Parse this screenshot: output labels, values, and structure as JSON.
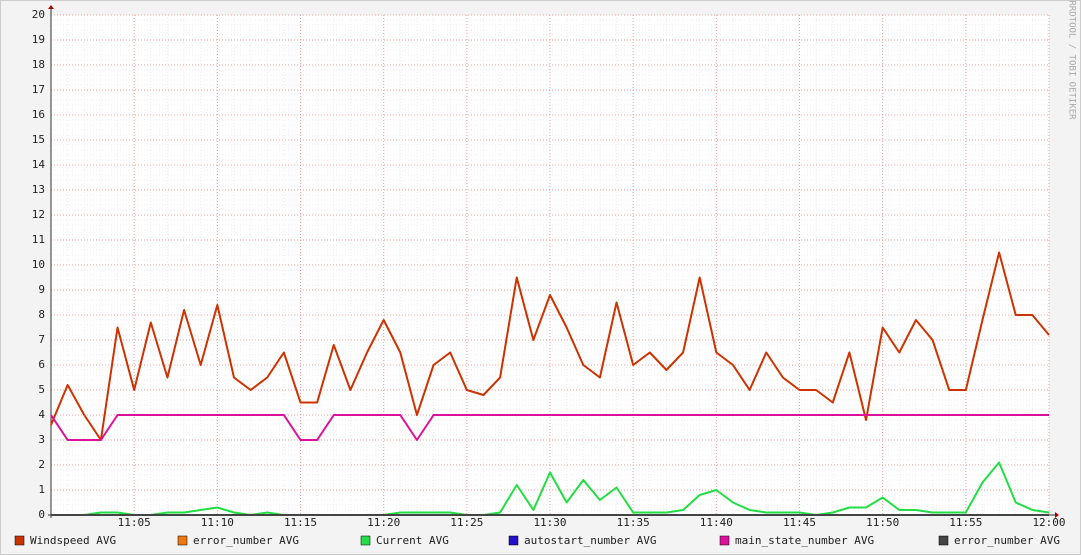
{
  "chart_data": {
    "type": "line",
    "watermark": "RRDTOOL / TOBI OETIKER",
    "x": [
      "11:00",
      "11:01",
      "11:02",
      "11:03",
      "11:04",
      "11:05",
      "11:06",
      "11:07",
      "11:08",
      "11:09",
      "11:10",
      "11:11",
      "11:12",
      "11:13",
      "11:14",
      "11:15",
      "11:16",
      "11:17",
      "11:18",
      "11:19",
      "11:20",
      "11:21",
      "11:22",
      "11:23",
      "11:24",
      "11:25",
      "11:26",
      "11:27",
      "11:28",
      "11:29",
      "11:30",
      "11:31",
      "11:32",
      "11:33",
      "11:34",
      "11:35",
      "11:36",
      "11:37",
      "11:38",
      "11:39",
      "11:40",
      "11:41",
      "11:42",
      "11:43",
      "11:44",
      "11:45",
      "11:46",
      "11:47",
      "11:48",
      "11:49",
      "11:50",
      "11:51",
      "11:52",
      "11:53",
      "11:54",
      "11:55",
      "11:56",
      "11:57",
      "11:58",
      "11:59",
      "12:00"
    ],
    "xlim": [
      "11:00",
      "12:00"
    ],
    "xticks": [
      "11:05",
      "11:10",
      "11:15",
      "11:20",
      "11:25",
      "11:30",
      "11:35",
      "11:40",
      "11:45",
      "11:50",
      "11:55",
      "12:00"
    ],
    "ylim": [
      0,
      20
    ],
    "yticks": [
      0,
      1,
      2,
      3,
      4,
      5,
      6,
      7,
      8,
      9,
      10,
      11,
      12,
      13,
      14,
      15,
      16,
      17,
      18,
      19,
      20
    ],
    "grid": true,
    "series": [
      {
        "name": "Windspeed AVG",
        "color": "#cc3300",
        "values": [
          3.6,
          5.2,
          4.0,
          3.0,
          7.5,
          5.0,
          7.7,
          5.5,
          8.2,
          6.0,
          8.4,
          5.5,
          5.0,
          5.5,
          6.5,
          4.5,
          4.5,
          6.8,
          5.0,
          6.5,
          7.8,
          6.5,
          4.0,
          6.0,
          6.5,
          5.0,
          4.8,
          5.5,
          9.5,
          7.0,
          8.8,
          7.5,
          6.0,
          5.5,
          8.5,
          6.0,
          6.5,
          5.8,
          6.5,
          9.5,
          6.5,
          6.0,
          5.0,
          6.5,
          5.5,
          5.0,
          5.0,
          4.5,
          6.5,
          3.8,
          7.5,
          6.5,
          7.8,
          7.0,
          5.0,
          5.0,
          7.8,
          10.5,
          8.0,
          8.0,
          7.2
        ]
      },
      {
        "name": "error_number AVG",
        "color": "#ee7711",
        "values": [
          0,
          0,
          0,
          0,
          0,
          0,
          0,
          0,
          0,
          0,
          0,
          0,
          0,
          0,
          0,
          0,
          0,
          0,
          0,
          0,
          0,
          0,
          0,
          0,
          0,
          0,
          0,
          0,
          0,
          0,
          0,
          0,
          0,
          0,
          0,
          0,
          0,
          0,
          0,
          0,
          0,
          0,
          0,
          0,
          0,
          0,
          0,
          0,
          0,
          0,
          0,
          0,
          0,
          0,
          0,
          0,
          0,
          0,
          0,
          0,
          0
        ]
      },
      {
        "name": "Current AVG",
        "color": "#22dd44",
        "values": [
          0,
          0,
          0,
          0.1,
          0.1,
          0,
          0,
          0.1,
          0.1,
          0.2,
          0.3,
          0.1,
          0,
          0.1,
          0,
          0,
          0,
          0,
          0,
          0,
          0,
          0.1,
          0.1,
          0.1,
          0.1,
          0,
          0,
          0.1,
          1.2,
          0.2,
          1.7,
          0.5,
          1.4,
          0.6,
          1.1,
          0.1,
          0.1,
          0.1,
          0.2,
          0.8,
          1.0,
          0.5,
          0.2,
          0.1,
          0.1,
          0.1,
          0,
          0.1,
          0.3,
          0.3,
          0.7,
          0.2,
          0.2,
          0.1,
          0.1,
          0.1,
          1.3,
          2.1,
          0.5,
          0.2,
          0.1
        ]
      },
      {
        "name": "autostart_number AVG",
        "color": "#2211cc",
        "values": [
          0,
          0,
          0,
          0,
          0,
          0,
          0,
          0,
          0,
          0,
          0,
          0,
          0,
          0,
          0,
          0,
          0,
          0,
          0,
          0,
          0,
          0,
          0,
          0,
          0,
          0,
          0,
          0,
          0,
          0,
          0,
          0,
          0,
          0,
          0,
          0,
          0,
          0,
          0,
          0,
          0,
          0,
          0,
          0,
          0,
          0,
          0,
          0,
          0,
          0,
          0,
          0,
          0,
          0,
          0,
          0,
          0,
          0,
          0,
          0,
          0
        ]
      },
      {
        "name": "main_state_number AVG",
        "color": "#dd1199",
        "values": [
          4,
          3,
          3,
          3,
          4,
          4,
          4,
          4,
          4,
          4,
          4,
          4,
          4,
          4,
          4,
          3,
          3,
          4,
          4,
          4,
          4,
          4,
          3,
          4,
          4,
          4,
          4,
          4,
          4,
          4,
          4,
          4,
          4,
          4,
          4,
          4,
          4,
          4,
          4,
          4,
          4,
          4,
          4,
          4,
          4,
          4,
          4,
          4,
          4,
          4,
          4,
          4,
          4,
          4,
          4,
          4,
          4,
          4,
          4,
          4,
          4
        ]
      },
      {
        "name": "error_number AVG",
        "color": "#444444",
        "values": [
          0,
          0,
          0,
          0,
          0,
          0,
          0,
          0,
          0,
          0,
          0,
          0,
          0,
          0,
          0,
          0,
          0,
          0,
          0,
          0,
          0,
          0,
          0,
          0,
          0,
          0,
          0,
          0,
          0,
          0,
          0,
          0,
          0,
          0,
          0,
          0,
          0,
          0,
          0,
          0,
          0,
          0,
          0,
          0,
          0,
          0,
          0,
          0,
          0,
          0,
          0,
          0,
          0,
          0,
          0,
          0,
          0,
          0,
          0,
          0,
          0
        ]
      }
    ]
  }
}
